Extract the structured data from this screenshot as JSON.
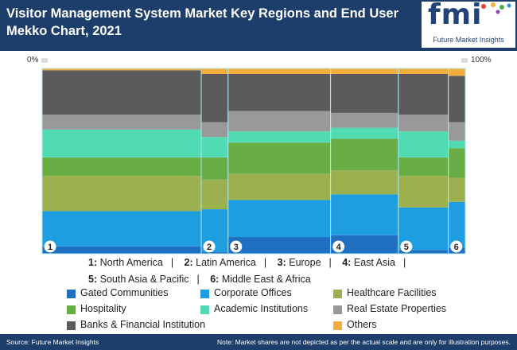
{
  "title": "Visitor Management System Market Key Regions and End User Mekko Chart, 2021",
  "logo": {
    "text": "fmi",
    "subtitle": "Future Market Insights"
  },
  "scale": {
    "min_label": "0%",
    "max_label": "100%"
  },
  "chart_data": {
    "type": "mekko",
    "title": "Visitor Management System Market Key Regions and End User Mekko Chart, 2021",
    "columns": [
      {
        "id": "1",
        "name": "North America",
        "width_share": 38.5
      },
      {
        "id": "2",
        "name": "Latin America",
        "width_share": 6.5
      },
      {
        "id": "3",
        "name": "Europe",
        "width_share": 24.8
      },
      {
        "id": "4",
        "name": "East Asia",
        "width_share": 16.4
      },
      {
        "id": "5",
        "name": "South Asia & Pacific",
        "width_share": 12.1
      },
      {
        "id": "6",
        "name": "Middle East & Africa",
        "width_share": 4.1
      }
    ],
    "series": [
      {
        "name": "Gated Communities",
        "color": "#1f6fc2",
        "values": [
          4,
          1,
          9,
          10,
          2,
          3
        ]
      },
      {
        "name": "Corporate Offices",
        "color": "#1e9ee0",
        "values": [
          19,
          23,
          20,
          22,
          23,
          25
        ]
      },
      {
        "name": "Healthcare Facilities",
        "color": "#9cb050",
        "values": [
          19,
          16,
          14,
          13,
          17,
          13
        ]
      },
      {
        "name": "Hospitality",
        "color": "#69ad47",
        "values": [
          10,
          12,
          17,
          17,
          10,
          16
        ]
      },
      {
        "name": "Academic Institutions",
        "color": "#50dbb2",
        "values": [
          15,
          11,
          6,
          6,
          14,
          4
        ]
      },
      {
        "name": "Real Estate Properties",
        "color": "#999999",
        "values": [
          8,
          8,
          11,
          8,
          9,
          10
        ]
      },
      {
        "name": "Banks & Financial Institution",
        "color": "#5b5b5b",
        "values": [
          24,
          26,
          20,
          21,
          22,
          25
        ]
      },
      {
        "name": "Others",
        "color": "#f4ad3c",
        "values": [
          1,
          3,
          3,
          3,
          3,
          4
        ]
      }
    ]
  },
  "region_key": {
    "line1": [
      {
        "num": "1:",
        "name": "North America"
      },
      {
        "num": "2:",
        "name": "Latin America"
      },
      {
        "num": "3:",
        "name": "Europe"
      },
      {
        "num": "4:",
        "name": "East Asia"
      }
    ],
    "line2": [
      {
        "num": "5:",
        "name": "South Asia & Pacific"
      },
      {
        "num": "6:",
        "name": "Middle East & Africa"
      }
    ]
  },
  "footer": {
    "source": "Source: Future Market Insights",
    "note": "Note: Market shares are not depicted as per the actual scale and are only for illustration purposes."
  }
}
